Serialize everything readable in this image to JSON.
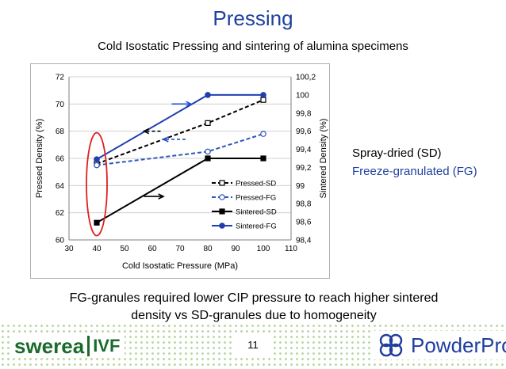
{
  "slide": {
    "title": "Pressing",
    "subtitle": "Cold Isostatic Pressing and sintering of alumina specimens",
    "label_sd": "Spray-dried (SD)",
    "label_fg": "Freeze-granulated (FG)",
    "conclusion_line1": "FG-granules required lower CIP pressure to reach higher sintered",
    "conclusion_line2": "density vs SD-granules due to homogeneity",
    "page_number": "11"
  },
  "logos": {
    "swerea_word": "swerea",
    "ivf_word": "IVF",
    "powderpro_word": "PowderPro",
    "swerea_color": "#1a6b2a",
    "powderpro_color": "#1f3f9f",
    "footer_dot_color": "#b9d9a3"
  },
  "chart_data": {
    "type": "line",
    "title": "",
    "xlabel": "Cold Isostatic Pressure (MPa)",
    "ylabel": "Pressed Density (%)",
    "y2label": "Sintered Density (%)",
    "xlim": [
      30,
      110
    ],
    "ylim": [
      60,
      72
    ],
    "y2lim": [
      98.4,
      100.2
    ],
    "xticks": [
      30,
      40,
      50,
      60,
      70,
      80,
      90,
      100,
      110
    ],
    "yticks": [
      60,
      62,
      64,
      66,
      68,
      70,
      72
    ],
    "y2ticks": [
      "98,4",
      "98,6",
      "98,8",
      "99",
      "99,2",
      "99,4",
      "99,6",
      "99,8",
      "100",
      "100,2"
    ],
    "y2tick_values": [
      98.4,
      98.6,
      98.8,
      99.0,
      99.2,
      99.4,
      99.6,
      99.8,
      100.0,
      100.2
    ],
    "grid": "horizontal",
    "legend_position": "right",
    "series": [
      {
        "name": "Pressed-SD",
        "axis": "left",
        "color": "#000000",
        "dash": true,
        "marker": "square-open",
        "x": [
          40,
          80,
          100
        ],
        "y": [
          65.6,
          68.6,
          70.3
        ]
      },
      {
        "name": "Pressed-FG",
        "axis": "left",
        "color": "#2e55b8",
        "dash": true,
        "marker": "circle-open",
        "x": [
          40,
          80,
          100
        ],
        "y": [
          65.5,
          66.5,
          67.8
        ]
      },
      {
        "name": "Sintered-SD",
        "axis": "right",
        "color": "#000000",
        "dash": false,
        "marker": "square",
        "x": [
          40,
          80,
          100
        ],
        "y": [
          98.59,
          99.3,
          99.3
        ]
      },
      {
        "name": "Sintered-FG",
        "axis": "right",
        "color": "#1f3fb0",
        "dash": false,
        "marker": "circle",
        "x": [
          40,
          80,
          100
        ],
        "y": [
          99.29,
          100.0,
          100.0
        ]
      }
    ]
  }
}
